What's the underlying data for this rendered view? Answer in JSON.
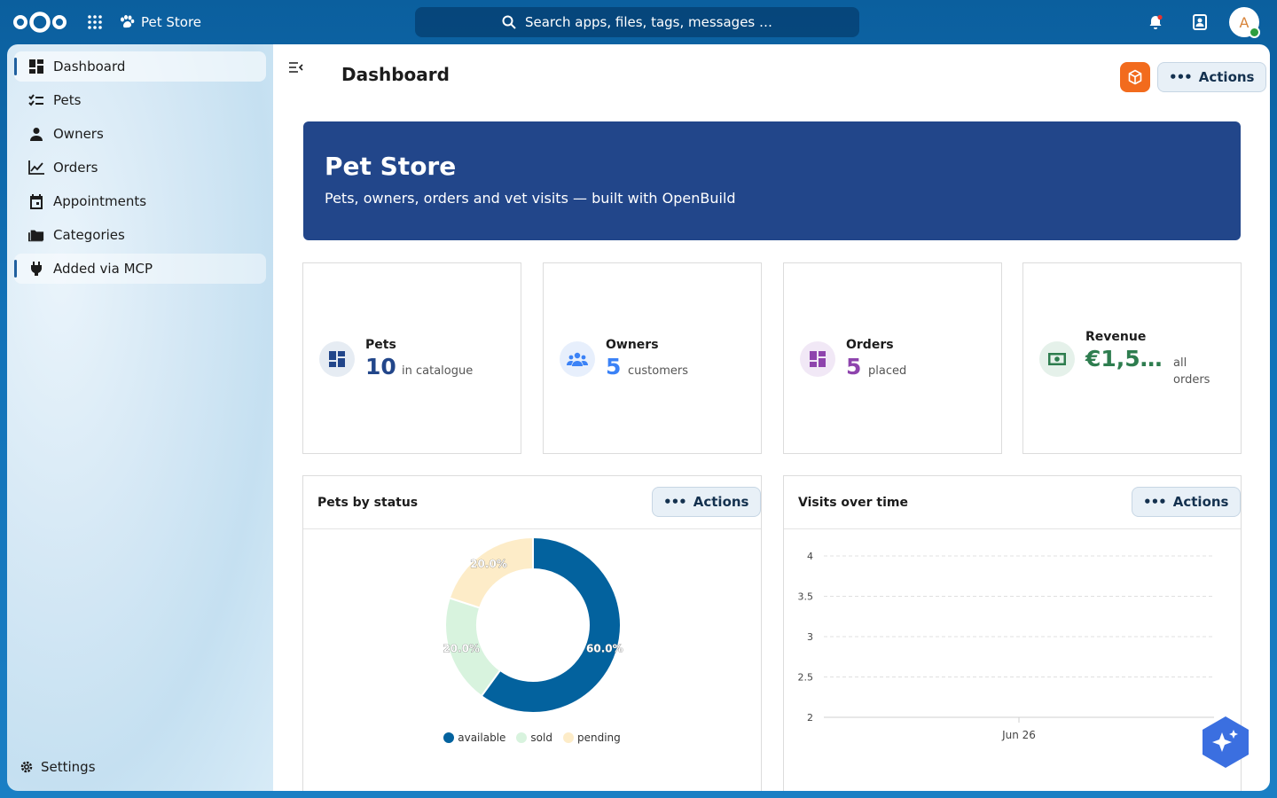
{
  "header": {
    "app_name": "Pet Store",
    "search_placeholder": "Search apps, files, tags, messages …",
    "avatar_initial": "A"
  },
  "sidebar": {
    "items": [
      {
        "label": "Dashboard",
        "icon": "dashboard-icon"
      },
      {
        "label": "Pets",
        "icon": "checklist-icon"
      },
      {
        "label": "Owners",
        "icon": "person-icon"
      },
      {
        "label": "Orders",
        "icon": "chart-line-icon"
      },
      {
        "label": "Appointments",
        "icon": "calendar-icon"
      },
      {
        "label": "Categories",
        "icon": "folder-icon"
      },
      {
        "label": "Added via MCP",
        "icon": "plug-icon"
      }
    ],
    "settings_label": "Settings"
  },
  "main": {
    "title": "Dashboard",
    "actions_label": "Actions",
    "hero": {
      "title": "Pet Store",
      "subtitle": "Pets, owners, orders and vet visits — built with OpenBuild"
    },
    "stats": [
      {
        "label": "Pets",
        "value": "10",
        "sub": "in catalogue",
        "color": "#22468a"
      },
      {
        "label": "Owners",
        "value": "5",
        "sub": "customers",
        "color": "#3b82f6"
      },
      {
        "label": "Orders",
        "value": "5",
        "sub": "placed",
        "color": "#8e44ad"
      },
      {
        "label": "Revenue",
        "value": "€1,5…",
        "sub": "all orders",
        "color": "#2e7d4f"
      }
    ],
    "panels": {
      "pets_by_status": {
        "title": "Pets by status",
        "actions_label": "Actions"
      },
      "visits_over_time": {
        "title": "Visits over time",
        "actions_label": "Actions"
      }
    }
  },
  "chart_data": [
    {
      "type": "pie",
      "title": "Pets by status",
      "categories": [
        "available",
        "sold",
        "pending"
      ],
      "values": [
        60.0,
        20.0,
        20.0
      ],
      "labels": [
        "60.0%",
        "20.0%",
        "20.0%"
      ],
      "colors": [
        "#03629e",
        "#d8f3de",
        "#fdecc8"
      ],
      "legend": "bottom"
    },
    {
      "type": "line",
      "title": "Visits over time",
      "x": [
        "Jun 26"
      ],
      "yticks": [
        "4",
        "3.5",
        "3",
        "2.5",
        "2"
      ],
      "ylim": [
        2,
        4
      ],
      "grid": true,
      "series": []
    }
  ]
}
